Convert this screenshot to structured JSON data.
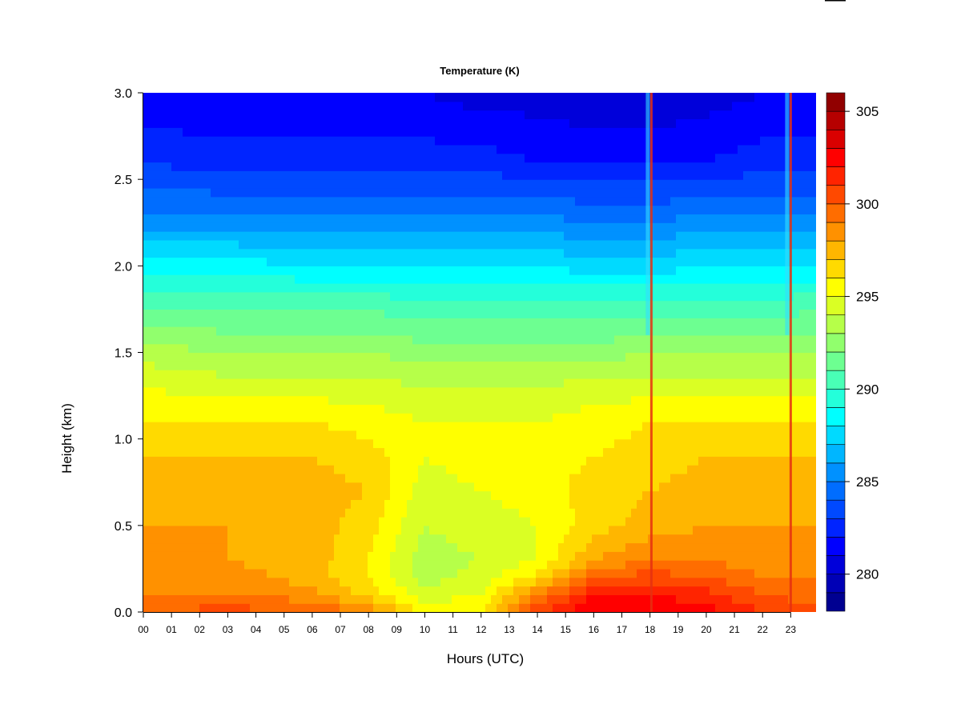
{
  "chart_data": {
    "type": "heatmap",
    "title": "Temperature (K)",
    "xlabel": "Hours (UTC)",
    "ylabel": "Height (km)",
    "x_ticks": [
      "00",
      "01",
      "02",
      "03",
      "04",
      "05",
      "06",
      "07",
      "08",
      "09",
      "10",
      "11",
      "12",
      "13",
      "14",
      "15",
      "16",
      "17",
      "18",
      "19",
      "20",
      "21",
      "22",
      "23"
    ],
    "y_ticks": [
      "0.0",
      "0.5",
      "1.0",
      "1.5",
      "2.0",
      "2.5",
      "3.0"
    ],
    "xlim": [
      0,
      23.9
    ],
    "ylim": [
      0,
      3.0
    ],
    "colorbar": {
      "min": 278,
      "max": 306,
      "step": 1,
      "tick_values": [
        280,
        285,
        290,
        295,
        300,
        305
      ],
      "tick_labels": [
        "280",
        "285",
        "290",
        "295",
        "300",
        "305"
      ],
      "colormap": [
        "#00007f",
        "#0000ff",
        "#007fff",
        "#00ffff",
        "#7fff7f",
        "#ffff00",
        "#ff7f00",
        "#ff0000",
        "#7f0000"
      ]
    },
    "profile_heights_km": [
      0.0,
      0.1,
      0.2,
      0.3,
      0.5,
      0.7,
      0.9,
      1.1,
      1.3,
      1.5,
      1.8,
      2.0,
      2.3,
      2.6,
      3.0
    ],
    "profiles": [
      {
        "hour": 0,
        "temps_K": [
          300,
          299,
          298.5,
          298,
          298,
          297.5,
          297,
          296,
          295,
          293.5,
          290.5,
          288.5,
          285,
          283,
          281
        ]
      },
      {
        "hour": 3,
        "temps_K": [
          300.5,
          299,
          298.5,
          298,
          298,
          297.5,
          297,
          296,
          294.5,
          293,
          290.5,
          288.5,
          285,
          282.5,
          281
        ]
      },
      {
        "hour": 6,
        "temps_K": [
          300,
          298.5,
          297.5,
          297.5,
          297.5,
          297.5,
          297,
          296,
          294.5,
          293,
          290.5,
          288,
          285,
          282.5,
          281
        ]
      },
      {
        "hour": 8,
        "temps_K": [
          299,
          296.5,
          296,
          296,
          296.5,
          297,
          296.5,
          295.5,
          294.5,
          293,
          290.5,
          288,
          285,
          282.5,
          281
        ]
      },
      {
        "hour": 10,
        "temps_K": [
          295.5,
          294.5,
          293.5,
          293.5,
          294,
          294.5,
          295,
          295,
          294,
          292.5,
          290,
          288,
          285,
          282.5,
          281
        ]
      },
      {
        "hour": 12,
        "temps_K": [
          296,
          295,
          294.5,
          294,
          294.5,
          295,
          295.5,
          295,
          294,
          292.5,
          290,
          288,
          285,
          282.5,
          280.5
        ]
      },
      {
        "hour": 14,
        "temps_K": [
          301,
          299,
          296.5,
          295,
          295,
          295.5,
          295.5,
          295,
          294,
          292.5,
          290,
          288,
          285,
          282,
          280.5
        ]
      },
      {
        "hour": 16,
        "temps_K": [
          303,
          302,
          300,
          298,
          296.5,
          296.5,
          296,
          295.5,
          294.5,
          292.5,
          290,
          287.5,
          284.5,
          282,
          280
        ]
      },
      {
        "hour": 18,
        "temps_K": [
          303,
          302,
          300.5,
          299,
          297.5,
          297,
          296.5,
          296,
          294.5,
          293,
          290,
          287.5,
          284.5,
          282,
          280
        ]
      },
      {
        "hour": 20,
        "temps_K": [
          302.5,
          301.5,
          300,
          299,
          298,
          297.5,
          297,
          296,
          294.5,
          293,
          290,
          288,
          285,
          282,
          280.5
        ]
      },
      {
        "hour": 22,
        "temps_K": [
          301,
          300,
          299,
          298.5,
          298,
          297.5,
          297,
          296,
          294.5,
          293,
          290,
          288,
          285,
          282.5,
          281
        ]
      },
      {
        "hour": 23.9,
        "temps_K": [
          300.5,
          299.5,
          299,
          298.5,
          298,
          297.5,
          297,
          296,
          294.5,
          293,
          290.5,
          288,
          285,
          282.5,
          281
        ]
      }
    ],
    "warm_streaks": [
      {
        "hour": 18.05,
        "max_height_km": 3.0
      },
      {
        "hour": 23.0,
        "max_height_km": 3.0
      }
    ],
    "grid": false,
    "legend": "none"
  }
}
